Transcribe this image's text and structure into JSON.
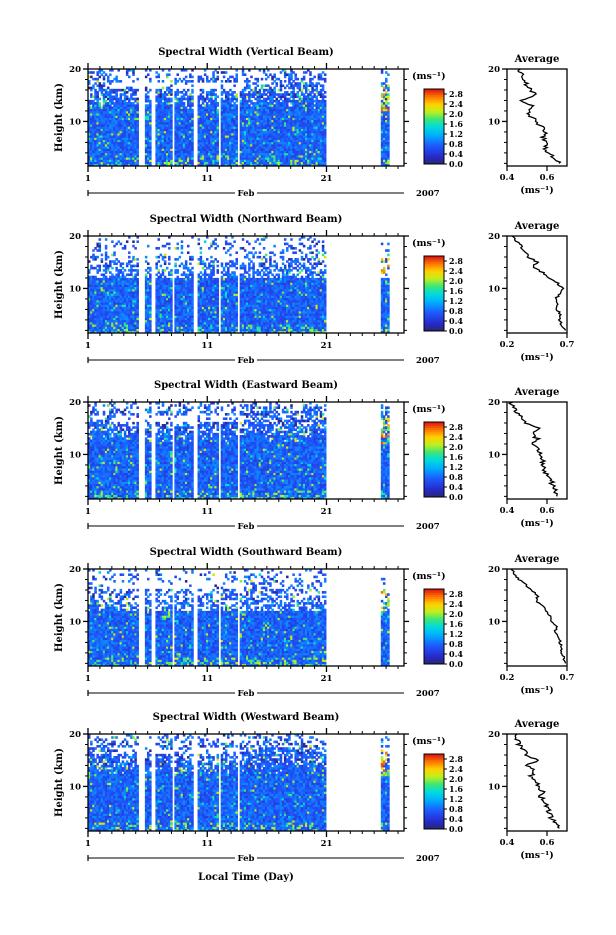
{
  "chart_data": {
    "type": "heatmap",
    "x_label": "Local Time (Day)",
    "month_label": "Feb",
    "year_label": "2007",
    "x_ticks": [
      1,
      11,
      21
    ],
    "x_range": [
      1,
      27.5
    ],
    "y_label": "Height (km)",
    "y_ticks": [
      10,
      20
    ],
    "y_range": [
      1.5,
      20
    ],
    "colorbar_unit": "(ms⁻¹)",
    "colorbar_ticks": [
      "0.0",
      "0.4",
      "0.8",
      "1.2",
      "1.6",
      "2.0",
      "2.4",
      "2.8"
    ],
    "colorbar_range": [
      0,
      3.0
    ],
    "avg_title": "Average",
    "avg_unit": "(ms⁻¹)",
    "panels": [
      {
        "title": "Spectral Width (Vertical Beam)",
        "avg_ticks": [
          "0.4",
          "0.6"
        ],
        "avg_xlim": [
          0.4,
          0.7
        ],
        "avg_profile": [
          [
            2,
            0.66
          ],
          [
            3,
            0.64
          ],
          [
            4,
            0.6
          ],
          [
            5,
            0.59
          ],
          [
            6,
            0.6
          ],
          [
            7,
            0.58
          ],
          [
            8,
            0.59
          ],
          [
            9,
            0.57
          ],
          [
            10,
            0.55
          ],
          [
            11,
            0.52
          ],
          [
            12,
            0.5
          ],
          [
            13,
            0.53
          ],
          [
            14,
            0.47
          ],
          [
            15,
            0.54
          ],
          [
            16,
            0.52
          ],
          [
            17,
            0.5
          ],
          [
            18,
            0.48
          ],
          [
            19,
            0.47
          ],
          [
            20,
            0.46
          ]
        ]
      },
      {
        "title": "Spectral Width (Northward Beam)",
        "avg_ticks": [
          "0.2",
          "0.7"
        ],
        "avg_xlim": [
          0.2,
          0.7
        ],
        "avg_profile": [
          [
            2,
            0.68
          ],
          [
            3,
            0.66
          ],
          [
            4,
            0.64
          ],
          [
            5,
            0.65
          ],
          [
            6,
            0.62
          ],
          [
            7,
            0.63
          ],
          [
            8,
            0.6
          ],
          [
            9,
            0.64
          ],
          [
            10,
            0.66
          ],
          [
            11,
            0.62
          ],
          [
            12,
            0.55
          ],
          [
            13,
            0.5
          ],
          [
            14,
            0.42
          ],
          [
            15,
            0.45
          ],
          [
            16,
            0.38
          ],
          [
            17,
            0.35
          ],
          [
            18,
            0.32
          ],
          [
            19,
            0.28
          ],
          [
            20,
            0.25
          ]
        ]
      },
      {
        "title": "Spectral Width (Eastward Beam)",
        "avg_ticks": [
          "0.4",
          "0.6"
        ],
        "avg_xlim": [
          0.4,
          0.7
        ],
        "avg_profile": [
          [
            2,
            0.66
          ],
          [
            3,
            0.64
          ],
          [
            4,
            0.63
          ],
          [
            5,
            0.62
          ],
          [
            6,
            0.6
          ],
          [
            7,
            0.59
          ],
          [
            8,
            0.58
          ],
          [
            9,
            0.58
          ],
          [
            10,
            0.57
          ],
          [
            11,
            0.55
          ],
          [
            12,
            0.53
          ],
          [
            13,
            0.55
          ],
          [
            14,
            0.52
          ],
          [
            15,
            0.56
          ],
          [
            16,
            0.5
          ],
          [
            17,
            0.48
          ],
          [
            18,
            0.45
          ],
          [
            19,
            0.43
          ],
          [
            20,
            0.42
          ]
        ]
      },
      {
        "title": "Spectral Width (Southward Beam)",
        "avg_ticks": [
          "0.2",
          "0.7"
        ],
        "avg_xlim": [
          0.2,
          0.7
        ],
        "avg_profile": [
          [
            2,
            0.68
          ],
          [
            3,
            0.67
          ],
          [
            4,
            0.66
          ],
          [
            5,
            0.65
          ],
          [
            6,
            0.64
          ],
          [
            7,
            0.63
          ],
          [
            8,
            0.6
          ],
          [
            9,
            0.61
          ],
          [
            10,
            0.58
          ],
          [
            11,
            0.56
          ],
          [
            12,
            0.52
          ],
          [
            13,
            0.5
          ],
          [
            14,
            0.44
          ],
          [
            15,
            0.46
          ],
          [
            16,
            0.4
          ],
          [
            17,
            0.36
          ],
          [
            18,
            0.3
          ],
          [
            19,
            0.26
          ],
          [
            20,
            0.24
          ]
        ]
      },
      {
        "title": "Spectral Width (Westward Beam)",
        "avg_ticks": [
          "0.4",
          "0.6"
        ],
        "avg_xlim": [
          0.4,
          0.7
        ],
        "avg_profile": [
          [
            2,
            0.66
          ],
          [
            3,
            0.64
          ],
          [
            4,
            0.62
          ],
          [
            5,
            0.61
          ],
          [
            6,
            0.6
          ],
          [
            7,
            0.59
          ],
          [
            8,
            0.57
          ],
          [
            9,
            0.58
          ],
          [
            10,
            0.56
          ],
          [
            11,
            0.55
          ],
          [
            12,
            0.52
          ],
          [
            13,
            0.54
          ],
          [
            14,
            0.5
          ],
          [
            15,
            0.55
          ],
          [
            16,
            0.5
          ],
          [
            17,
            0.48
          ],
          [
            18,
            0.46
          ],
          [
            19,
            0.45
          ],
          [
            20,
            0.44
          ]
        ]
      }
    ]
  }
}
